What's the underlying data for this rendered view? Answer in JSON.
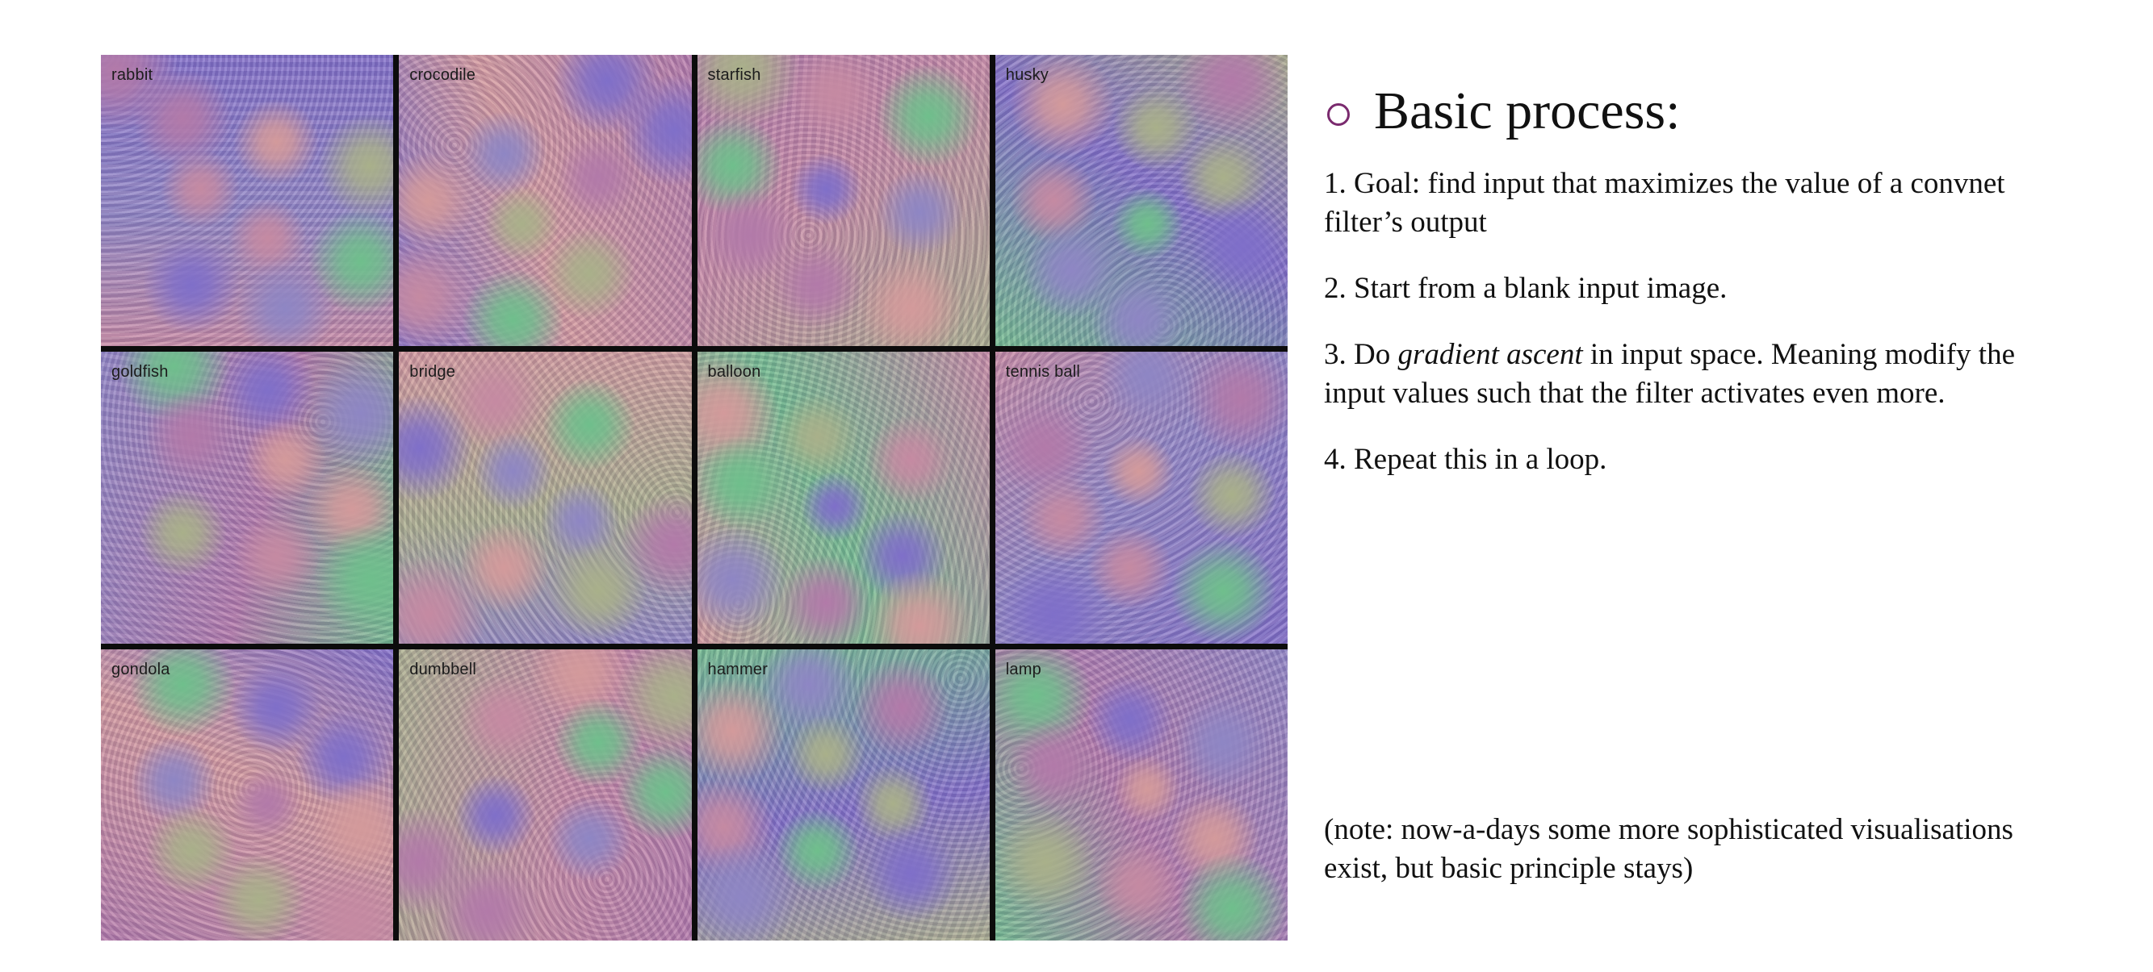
{
  "grid": {
    "tiles": [
      {
        "label": "rabbit"
      },
      {
        "label": "crocodile"
      },
      {
        "label": "starfish"
      },
      {
        "label": "husky"
      },
      {
        "label": "goldfish"
      },
      {
        "label": "bridge"
      },
      {
        "label": "balloon"
      },
      {
        "label": "tennis ball"
      },
      {
        "label": "gondola"
      },
      {
        "label": "dumbbell"
      },
      {
        "label": "hammer"
      },
      {
        "label": "lamp"
      }
    ],
    "palette": [
      "#b27aa9",
      "#c58aa2",
      "#8e86c4",
      "#a9b08a",
      "#7f6fc9",
      "#d39a9b",
      "#6fbf8c"
    ]
  },
  "panel": {
    "heading": "Basic process:",
    "steps": {
      "s1": "1. Goal: find input that maximizes the value of a convnet filter’s output",
      "s2": "2. Start from a blank input image.",
      "s3_pre": "3. Do ",
      "s3_em": "gradient ascent",
      "s3_post": " in input space. Meaning modify the input values such that the filter activates even more.",
      "s4": "4. Repeat this in a loop."
    },
    "note": "(note: now-a-days some more sophisticated visualisations exist, but basic principle stays)"
  }
}
